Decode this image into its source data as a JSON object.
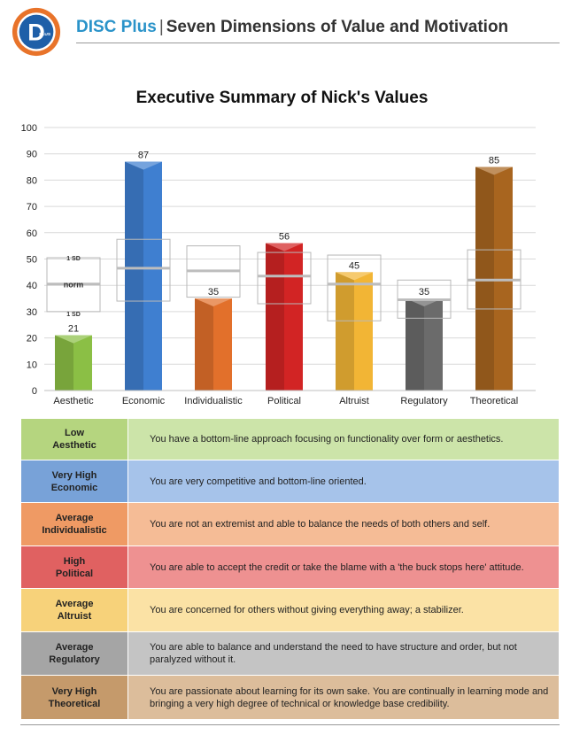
{
  "header": {
    "brand": "DISC Plus",
    "separator": "|",
    "subtitle": "Seven Dimensions of Value and Motivation",
    "logo_letter": "D",
    "logo_text": "PLUS"
  },
  "chart_data": {
    "type": "bar",
    "title": "Executive Summary of Nick's Values",
    "xlabel": "",
    "ylabel": "",
    "ylim": [
      0,
      100
    ],
    "yticks": [
      "0",
      "10",
      "20",
      "30",
      "40",
      "50",
      "60",
      "70",
      "80",
      "90",
      "100"
    ],
    "categories": [
      "Aesthetic",
      "Economic",
      "Individualistic",
      "Political",
      "Altruist",
      "Regulatory",
      "Theoretical"
    ],
    "values": [
      21,
      87,
      35,
      56,
      45,
      35,
      85
    ],
    "norm": [
      40.5,
      46.5,
      45.5,
      43.5,
      40.5,
      34.5,
      42
    ],
    "sd_low": [
      30,
      34,
      35.5,
      33,
      26.5,
      27.5,
      31
    ],
    "sd_high": [
      50.5,
      57.5,
      55,
      52.5,
      51.5,
      42,
      53.5
    ],
    "colors": [
      "#8bbf45",
      "#3f7fd0",
      "#e2702b",
      "#d22424",
      "#f2b535",
      "#6b6b6b",
      "#a8651f"
    ],
    "grid": true,
    "legend": "none",
    "annotations": {
      "norm_label": "norm",
      "sd_label": "1 SD"
    }
  },
  "summary": {
    "rows": [
      {
        "level": [
          "Low",
          "Aesthetic"
        ],
        "text": [
          "You have a bottom-line approach focusing on functionality over form or aesthetics."
        ],
        "level_color": "#b5d57f",
        "text_color": "#cce4a9"
      },
      {
        "level": [
          "Very High",
          "Economic"
        ],
        "text": [
          "You are very competitive and bottom-line oriented."
        ],
        "level_color": "#78a2d8",
        "text_color": "#a6c3ea"
      },
      {
        "level": [
          "Average",
          "Individualistic"
        ],
        "text": [
          "You are not an extremist and able to balance the needs of both others and self."
        ],
        "level_color": "#ef9a64",
        "text_color": "#f5bc96"
      },
      {
        "level": [
          "High",
          "Political"
        ],
        "text": [
          "You are able to accept the credit or take the blame with a 'the buck stops here' attitude."
        ],
        "level_color": "#e06161",
        "text_color": "#ee9191"
      },
      {
        "level": [
          "Average",
          "Altruist"
        ],
        "text": [
          "You are concerned for others without giving everything away; a stabilizer."
        ],
        "level_color": "#f7d27a",
        "text_color": "#fbe2a5"
      },
      {
        "level": [
          "Average",
          "Regulatory"
        ],
        "text": [
          "You are able to balance and understand the need to have structure and order, but not",
          "paralyzed without it."
        ],
        "level_color": "#a5a5a5",
        "text_color": "#c4c4c4"
      },
      {
        "level": [
          "Very High",
          "Theoretical"
        ],
        "text": [
          "You are passionate about learning for its own sake. You are continually in learning mode and",
          "bringing a very high degree of technical or knowledge base credibility."
        ],
        "level_color": "#c59a6b",
        "text_color": "#dcbd9b"
      }
    ]
  }
}
